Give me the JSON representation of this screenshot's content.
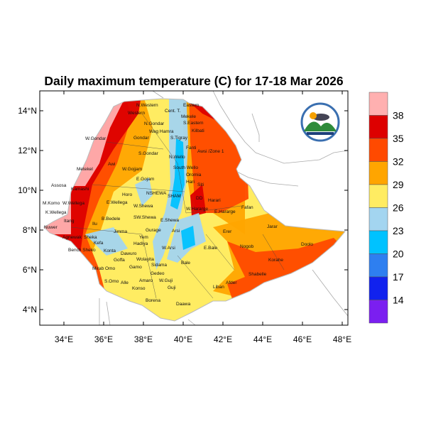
{
  "title": "Daily maximum temperature (C) for 17-18 Mar 2026",
  "map": {
    "region": "Ethiopia",
    "lon_ticks": [
      "34°E",
      "36°E",
      "38°E",
      "40°E",
      "42°E",
      "44°E",
      "46°E",
      "48°E"
    ],
    "lat_ticks": [
      "14°N",
      "12°N",
      "10°N",
      "8°N",
      "6°N",
      "4°N"
    ],
    "lon_range": [
      32.8,
      48.3
    ],
    "lat_range": [
      3.2,
      15.0
    ],
    "zone_labels": [
      "N.Western",
      "Cent. T.",
      "Eastern",
      "Western",
      "Mekele",
      "S.Eastern",
      "N.Gondar",
      "W.Gondar",
      "Gondar",
      "Wag Hamra",
      "S.Tigray",
      "Kilbati",
      "Fanti",
      "Awsi /Zone 1",
      "S.Gondar",
      "N.Wello",
      "Metekel",
      "Awi",
      "W.Gojjam",
      "South Wello",
      "Oromia",
      "E.Gojam",
      "Hari",
      "Assosa",
      "Kamashi",
      "Horo",
      "NSHEWA",
      "SHAM",
      "Siti",
      "DD",
      "Harari",
      "Fafan",
      "M.Komo",
      "W.Wellega",
      "E.Wellega",
      "W.Shewa",
      "W.Hararge",
      "E.Hararge",
      "K.Wellega",
      "B.Bedele",
      "SW.Shewa",
      "E.Shewa",
      "Nuwer",
      "Itang",
      "Ilu",
      "Jimma",
      "Gurage",
      "Arsi",
      "Agnewak",
      "Sheka",
      "Yem",
      "Kefa",
      "Hadiya",
      "Konta",
      "Dawuro",
      "Wolayita",
      "W.Arsi",
      "E.Bale",
      "Erer",
      "Jarar",
      "Nogob",
      "Doolo",
      "Bench Sheko",
      "Sidama",
      "Bale",
      "Korahe",
      "Goffa",
      "Gamo",
      "Gedeo",
      "Mirab Omo",
      "Amaro",
      "W.Guji",
      "Guji",
      "Shabelle",
      "S.Omo",
      "Alle",
      "Konso",
      "Liban",
      "Afder",
      "Borena",
      "Daawa"
    ]
  },
  "colorbar": {
    "labels": [
      "38",
      "35",
      "32",
      "29",
      "26",
      "23",
      "20",
      "17",
      "14"
    ],
    "colors": [
      "#ffb0b0",
      "#dd0000",
      "#ff4a00",
      "#ffa500",
      "#ffec62",
      "#a3d5f0",
      "#00c2ff",
      "#2e7ff0",
      "#1122ee",
      "#7b1ff0"
    ]
  },
  "logo": {
    "name": "Ethiopian Meteorology Institute logo"
  }
}
